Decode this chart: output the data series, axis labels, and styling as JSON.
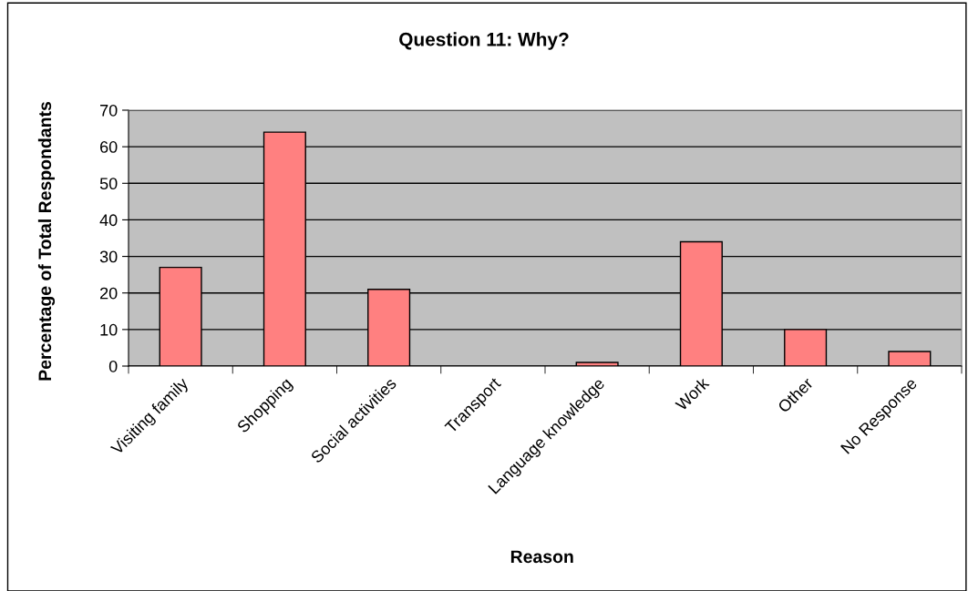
{
  "chart_data": {
    "type": "bar",
    "title": "Question 11: Why?",
    "xlabel": "Reason",
    "ylabel": "Percentage of Total Respondants",
    "categories": [
      "Visiting family",
      "Shopping",
      "Social activities",
      "Transport",
      "Language knowledge",
      "Work",
      "Other",
      "No Response"
    ],
    "values": [
      27,
      64,
      21,
      null,
      1,
      34,
      10,
      4
    ],
    "color": "#ff8080",
    "ylim": [
      0,
      70
    ],
    "yticks": [
      0,
      10,
      20,
      30,
      40,
      50,
      60,
      70
    ],
    "grid": "y",
    "legend": false
  }
}
